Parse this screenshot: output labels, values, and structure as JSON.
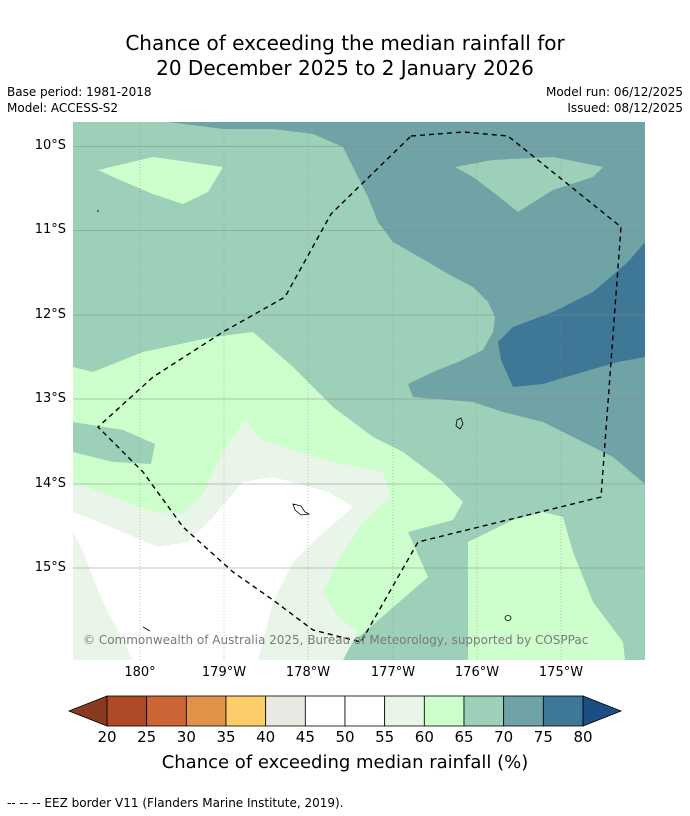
{
  "title": {
    "line1": "Chance of exceeding the median rainfall for",
    "line2": "20 December 2025 to 2 January 2026"
  },
  "meta": {
    "base_period": "Base period: 1981-2018",
    "model": "Model: ACCESS-S2",
    "model_run": "Model run: 06/12/2025",
    "issued": "Issued: 08/12/2025"
  },
  "map": {
    "lat_labels": [
      "10°S",
      "11°S",
      "12°S",
      "13°S",
      "14°S",
      "15°S"
    ],
    "lon_labels": [
      "180°",
      "179°W",
      "178°W",
      "177°W",
      "176°W",
      "175°W"
    ],
    "copyright": "© Commonwealth of Australia 2025, Bureau of Meteorology, supported by COSPPac",
    "region_colors": {
      "c60_65": "#ccffcc",
      "c65_70": "#9dd0b8",
      "c70_75": "#6fa3a6",
      "c75_80": "#3f7797",
      "c55_60": "#eaf5e9",
      "c50_55": "#ffffff"
    }
  },
  "colorbar": {
    "label": "Chance of exceeding median rainfall (%)",
    "ticks": [
      "20",
      "25",
      "30",
      "35",
      "40",
      "45",
      "50",
      "55",
      "60",
      "65",
      "70",
      "75",
      "80"
    ],
    "low_extend_color": "#8b3a22",
    "high_extend_color": "#1b4e84",
    "colors": [
      "#b04927",
      "#cc6636",
      "#e09346",
      "#fdcd69",
      "#e9e8e3",
      "#ffffff",
      "#ffffff",
      "#eaf5e9",
      "#ccffcc",
      "#9dd0b8",
      "#6fa3a6",
      "#3f7797"
    ]
  },
  "footer": "--  --  -- EEZ border V11 (Flanders Marine Institute, 2019)."
}
